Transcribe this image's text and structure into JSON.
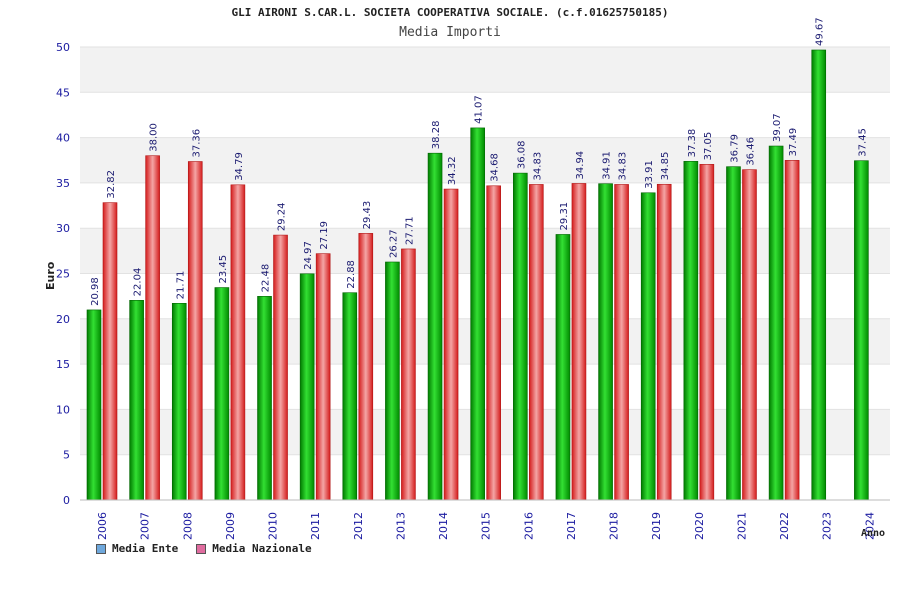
{
  "chart_data": {
    "type": "bar",
    "title": "GLI AIRONI S.CAR.L. SOCIETA COOPERATIVA SOCIALE. (c.f.01625750185)",
    "subtitle": "Media Importi",
    "xlabel": "Anno",
    "ylabel": "Euro",
    "ylim": [
      0,
      50
    ],
    "yticks": [
      0,
      5,
      10,
      15,
      20,
      25,
      30,
      35,
      40,
      45,
      50
    ],
    "grid": true,
    "legend_position": "bottom-left",
    "categories": [
      "2006",
      "2007",
      "2008",
      "2009",
      "2010",
      "2011",
      "2012",
      "2013",
      "2014",
      "2015",
      "2016",
      "2017",
      "2018",
      "2019",
      "2020",
      "2021",
      "2022",
      "2023",
      "2024"
    ],
    "series": [
      {
        "name": "Media Ente",
        "color": "#00aa00",
        "legend_color": "#6fa8dc",
        "values": [
          20.98,
          22.04,
          21.71,
          23.45,
          22.48,
          24.97,
          22.88,
          26.27,
          38.28,
          41.07,
          36.08,
          29.31,
          34.91,
          33.91,
          37.38,
          36.79,
          39.07,
          49.67,
          37.45
        ],
        "labels": [
          "20.98",
          "22.04",
          "21.71",
          "23.45",
          "22.48",
          "24.97",
          "22.88",
          "26.27",
          "38.28",
          "41.07",
          "36.08",
          "29.31",
          "34.91",
          "33.91",
          "37.38",
          "36.79",
          "39.07",
          "49.67",
          "37.45"
        ]
      },
      {
        "name": "Media Nazionale",
        "color": "#e83030",
        "legend_color": "#e06c9f",
        "values": [
          32.82,
          38.0,
          37.36,
          34.79,
          29.24,
          27.19,
          29.43,
          27.71,
          34.32,
          34.68,
          34.83,
          34.94,
          34.83,
          34.85,
          37.05,
          36.46,
          37.49,
          null,
          null
        ],
        "labels": [
          "32.82",
          "38.00",
          "37.36",
          "34.79",
          "29.24",
          "27.19",
          "29.43",
          "27.71",
          "34.32",
          "34.68",
          "34.83",
          "34.94",
          "34.83",
          "34.85",
          "37.05",
          "36.46",
          "37.49",
          null,
          null
        ]
      }
    ]
  }
}
